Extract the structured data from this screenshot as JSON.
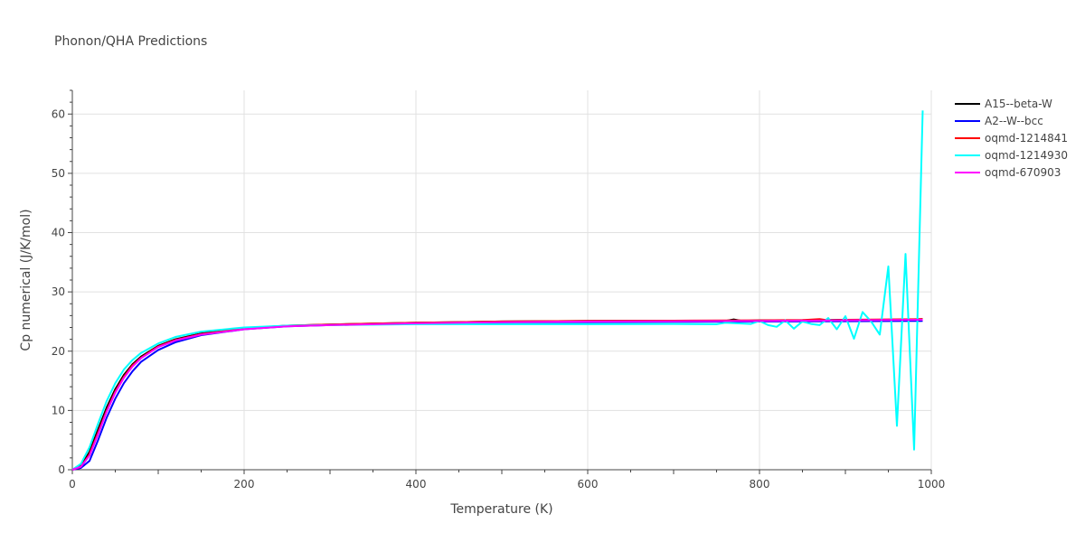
{
  "chart_data": {
    "type": "line",
    "title": "Phonon/QHA Predictions",
    "xlabel": "Temperature (K)",
    "ylabel": "Cp numerical (J/K/mol)",
    "xlim": [
      0,
      1000
    ],
    "ylim": [
      0,
      64
    ],
    "xticks": [
      0,
      200,
      400,
      600,
      800,
      1000
    ],
    "yticks": [
      0,
      10,
      20,
      30,
      40,
      50,
      60
    ],
    "grid": true,
    "legend_position": "top-right",
    "series": [
      {
        "name": "A15--beta-W",
        "color": "#000000",
        "x": [
          0,
          10,
          20,
          30,
          40,
          50,
          60,
          70,
          80,
          100,
          120,
          150,
          200,
          250,
          300,
          400,
          500,
          600,
          700,
          760,
          770,
          780,
          800,
          850,
          900,
          950,
          990
        ],
        "y": [
          0,
          0.6,
          3.0,
          6.8,
          10.5,
          13.6,
          16.0,
          17.8,
          19.1,
          20.9,
          22.0,
          23.0,
          23.9,
          24.3,
          24.5,
          24.8,
          25.0,
          25.1,
          25.15,
          25.1,
          25.35,
          25.1,
          25.2,
          25.2,
          25.3,
          25.3,
          25.4
        ]
      },
      {
        "name": "A2--W--bcc",
        "color": "#0000ff",
        "x": [
          0,
          10,
          20,
          30,
          40,
          50,
          60,
          70,
          80,
          100,
          120,
          150,
          200,
          250,
          300,
          400,
          500,
          600,
          700,
          800,
          900,
          990
        ],
        "y": [
          0,
          0.3,
          1.5,
          5.0,
          8.8,
          12.0,
          14.6,
          16.6,
          18.2,
          20.2,
          21.5,
          22.7,
          23.7,
          24.2,
          24.4,
          24.7,
          24.85,
          24.9,
          24.95,
          25.0,
          25.05,
          25.1
        ]
      },
      {
        "name": "oqmd-1214841",
        "color": "#ff0000",
        "x": [
          0,
          10,
          20,
          30,
          40,
          50,
          60,
          70,
          80,
          100,
          120,
          150,
          200,
          250,
          300,
          400,
          500,
          600,
          700,
          800,
          850,
          870,
          880,
          900,
          950,
          990
        ],
        "y": [
          0,
          0.5,
          2.6,
          6.3,
          10.0,
          13.2,
          15.7,
          17.6,
          18.9,
          20.8,
          21.9,
          22.9,
          23.8,
          24.3,
          24.5,
          24.8,
          25.0,
          25.1,
          25.15,
          25.2,
          25.25,
          25.4,
          25.2,
          25.3,
          25.35,
          25.4
        ]
      },
      {
        "name": "oqmd-1214930",
        "color": "#00ffff",
        "x": [
          0,
          10,
          20,
          30,
          40,
          50,
          60,
          70,
          80,
          100,
          120,
          150,
          200,
          250,
          300,
          400,
          500,
          600,
          700,
          750,
          760,
          790,
          800,
          810,
          820,
          830,
          840,
          850,
          860,
          870,
          880,
          890,
          900,
          910,
          920,
          930,
          940,
          950,
          960,
          970,
          980,
          990
        ],
        "y": [
          0,
          1.0,
          3.8,
          7.8,
          11.6,
          14.6,
          16.9,
          18.5,
          19.7,
          21.3,
          22.4,
          23.3,
          24.0,
          24.3,
          24.4,
          24.55,
          24.55,
          24.55,
          24.6,
          24.55,
          24.8,
          24.6,
          25.1,
          24.4,
          24.1,
          25.2,
          23.8,
          25.0,
          24.6,
          24.4,
          25.6,
          23.7,
          25.9,
          22.1,
          26.6,
          25.0,
          22.8,
          34.3,
          7.4,
          36.4,
          3.4,
          60.6
        ]
      },
      {
        "name": "oqmd-670903",
        "color": "#ff00ff",
        "x": [
          0,
          10,
          20,
          30,
          40,
          50,
          60,
          70,
          80,
          100,
          120,
          150,
          200,
          250,
          300,
          400,
          500,
          600,
          700,
          800,
          900,
          990
        ],
        "y": [
          0,
          0.5,
          2.4,
          6.0,
          9.8,
          13.0,
          15.5,
          17.4,
          18.8,
          20.7,
          21.8,
          22.8,
          23.7,
          24.2,
          24.4,
          24.7,
          24.9,
          25.0,
          25.05,
          25.1,
          25.2,
          25.3
        ]
      }
    ]
  }
}
